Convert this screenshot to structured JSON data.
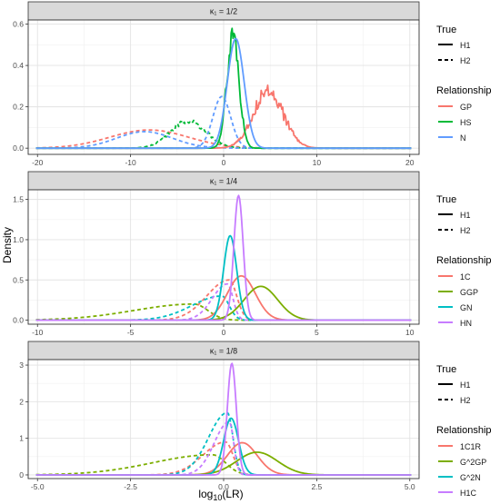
{
  "figure": {
    "y_axis_label": "Density",
    "x_axis_label": "log10(LR)",
    "x_axis_label_main": "log",
    "x_axis_label_sub": "10",
    "x_axis_label_tail": "(LR)"
  },
  "chart_data": [
    {
      "type": "line",
      "panel_title": "κ₁ = 1/2",
      "xlim": [
        -21,
        21
      ],
      "ylim": [
        -0.03,
        0.62
      ],
      "x_ticks": [
        -20,
        -10,
        0,
        10,
        20
      ],
      "x_tick_labels": [
        "-20",
        "-10",
        "0",
        "10",
        "20"
      ],
      "y_ticks": [
        0.0,
        0.2,
        0.4,
        0.6
      ],
      "y_tick_labels": [
        "0.0",
        "0.2",
        "0.4",
        "0.6"
      ],
      "grid": true,
      "legend": {
        "true_title": "True",
        "true_entries": [
          "H1",
          "H2"
        ],
        "relationship_title": "Relationship",
        "relationship_entries": [
          "GP",
          "HS",
          "N"
        ]
      },
      "series": [
        {
          "name": "GP",
          "true": "H1",
          "color": "#F8766D",
          "curve": "gauss",
          "mu": 4.8,
          "sigma": 1.6,
          "peak": 0.28,
          "noise": 0.035
        },
        {
          "name": "HS",
          "true": "H1",
          "color": "#00BA38",
          "curve": "gauss",
          "mu": 1.0,
          "sigma": 0.65,
          "peak": 0.55,
          "noise": 0.045
        },
        {
          "name": "N",
          "true": "H1",
          "color": "#619CFF",
          "curve": "gauss",
          "mu": 1.3,
          "sigma": 0.9,
          "peak": 0.53,
          "noise": 0
        },
        {
          "name": "GP",
          "true": "H2",
          "color": "#F8766D",
          "curve": "gauss",
          "mu": -8.0,
          "sigma": 4.2,
          "peak": 0.088,
          "noise": 0
        },
        {
          "name": "HS",
          "true": "H2",
          "color": "#00BA38",
          "curve": "gauss",
          "mu": -3.8,
          "sigma": 1.9,
          "peak": 0.13,
          "noise": 0.012
        },
        {
          "name": "N",
          "true": "H2",
          "color": "#619CFF",
          "curve": "gauss",
          "mu": -0.2,
          "sigma": 0.95,
          "peak": 0.25,
          "noise": 0
        },
        {
          "name": "N",
          "true": "H2",
          "color": "#619CFF",
          "curve": "gauss",
          "mu": -8.5,
          "sigma": 3.0,
          "peak": 0.08,
          "noise": 0
        }
      ]
    },
    {
      "type": "line",
      "panel_title": "κ₁ = 1/4",
      "xlim": [
        -10.5,
        10.5
      ],
      "ylim": [
        -0.05,
        1.62
      ],
      "x_ticks": [
        -10,
        -5,
        0,
        5,
        10
      ],
      "x_tick_labels": [
        "-10",
        "-5",
        "0",
        "5",
        "10"
      ],
      "y_ticks": [
        0.0,
        0.5,
        1.0,
        1.5
      ],
      "y_tick_labels": [
        "0.0",
        "0.5",
        "1.0",
        "1.5"
      ],
      "grid": true,
      "legend": {
        "true_title": "True",
        "true_entries": [
          "H1",
          "H2"
        ],
        "relationship_title": "Relationship",
        "relationship_entries": [
          "1C",
          "GGP",
          "GN",
          "HN"
        ]
      },
      "series": [
        {
          "name": "1C",
          "true": "H1",
          "color": "#F8766D",
          "curve": "gauss",
          "mu": 0.95,
          "sigma": 0.75,
          "peak": 0.55,
          "noise": 0
        },
        {
          "name": "GGP",
          "true": "H1",
          "color": "#7CAE00",
          "curve": "gauss",
          "mu": 2.0,
          "sigma": 0.9,
          "peak": 0.42,
          "noise": 0
        },
        {
          "name": "GN",
          "true": "H1",
          "color": "#00BFC4",
          "curve": "gauss",
          "mu": 0.35,
          "sigma": 0.35,
          "peak": 1.05,
          "noise": 0
        },
        {
          "name": "HN",
          "true": "H1",
          "color": "#C77CFF",
          "curve": "gauss",
          "mu": 0.8,
          "sigma": 0.25,
          "peak": 1.55,
          "noise": 0
        },
        {
          "name": "1C",
          "true": "H2",
          "color": "#F8766D",
          "curve": "skew",
          "mode": 0.3,
          "left": 1.2,
          "right": 0.4,
          "peak": 0.5,
          "noise": 0
        },
        {
          "name": "GGP",
          "true": "H2",
          "color": "#7CAE00",
          "curve": "skew",
          "mode": -1.6,
          "left": 3.2,
          "right": 0.75,
          "peak": 0.2,
          "noise": 0
        },
        {
          "name": "GN",
          "true": "H2",
          "color": "#00BFC4",
          "curve": "skew",
          "mode": -0.1,
          "left": 1.6,
          "right": 0.4,
          "peak": 0.3,
          "noise": 0
        },
        {
          "name": "HN",
          "true": "H2",
          "color": "#C77CFF",
          "curve": "skew",
          "mode": 0.2,
          "left": 0.8,
          "right": 0.3,
          "peak": 0.45,
          "noise": 0
        }
      ]
    },
    {
      "type": "line",
      "panel_title": "κ₁ = 1/8",
      "xlim": [
        -5.25,
        5.25
      ],
      "ylim": [
        -0.1,
        3.15
      ],
      "x_ticks": [
        -5.0,
        -2.5,
        0.0,
        2.5,
        5.0
      ],
      "x_tick_labels": [
        "-5.0",
        "-2.5",
        "0.0",
        "2.5",
        "5.0"
      ],
      "y_ticks": [
        0,
        1,
        2,
        3
      ],
      "y_tick_labels": [
        "0",
        "1",
        "2",
        "3"
      ],
      "grid": true,
      "legend": {
        "true_title": "True",
        "true_entries": [
          "H1",
          "H2"
        ],
        "relationship_title": "Relationship",
        "relationship_entries": [
          "1C1R",
          "G^2GP",
          "G^2N",
          "H1C"
        ]
      },
      "series": [
        {
          "name": "1C1R",
          "true": "H1",
          "color": "#F8766D",
          "curve": "gauss",
          "mu": 0.5,
          "sigma": 0.4,
          "peak": 0.88,
          "noise": 0
        },
        {
          "name": "G^2GP",
          "true": "H1",
          "color": "#7CAE00",
          "curve": "gauss",
          "mu": 0.9,
          "sigma": 0.55,
          "peak": 0.62,
          "noise": 0
        },
        {
          "name": "G^2N",
          "true": "H1",
          "color": "#00BFC4",
          "curve": "gauss",
          "mu": 0.2,
          "sigma": 0.2,
          "peak": 1.55,
          "noise": 0
        },
        {
          "name": "H1C",
          "true": "H1",
          "color": "#C77CFF",
          "curve": "gauss",
          "mu": 0.22,
          "sigma": 0.12,
          "peak": 3.05,
          "noise": 0
        },
        {
          "name": "1C1R",
          "true": "H2",
          "color": "#F8766D",
          "curve": "skew",
          "mode": 0.05,
          "left": 0.6,
          "right": 0.2,
          "peak": 0.9,
          "noise": 0
        },
        {
          "name": "G^2GP",
          "true": "H2",
          "color": "#7CAE00",
          "curve": "skew",
          "mode": -0.3,
          "left": 1.6,
          "right": 0.35,
          "peak": 0.55,
          "noise": 0
        },
        {
          "name": "G^2N",
          "true": "H2",
          "color": "#00BFC4",
          "curve": "skew",
          "mode": 0.1,
          "left": 0.5,
          "right": 0.15,
          "peak": 1.7,
          "noise": 0
        },
        {
          "name": "H1C",
          "true": "H2",
          "color": "#C77CFF",
          "curve": "skew",
          "mode": 0.15,
          "left": 0.4,
          "right": 0.12,
          "peak": 1.45,
          "noise": 0
        }
      ]
    }
  ]
}
